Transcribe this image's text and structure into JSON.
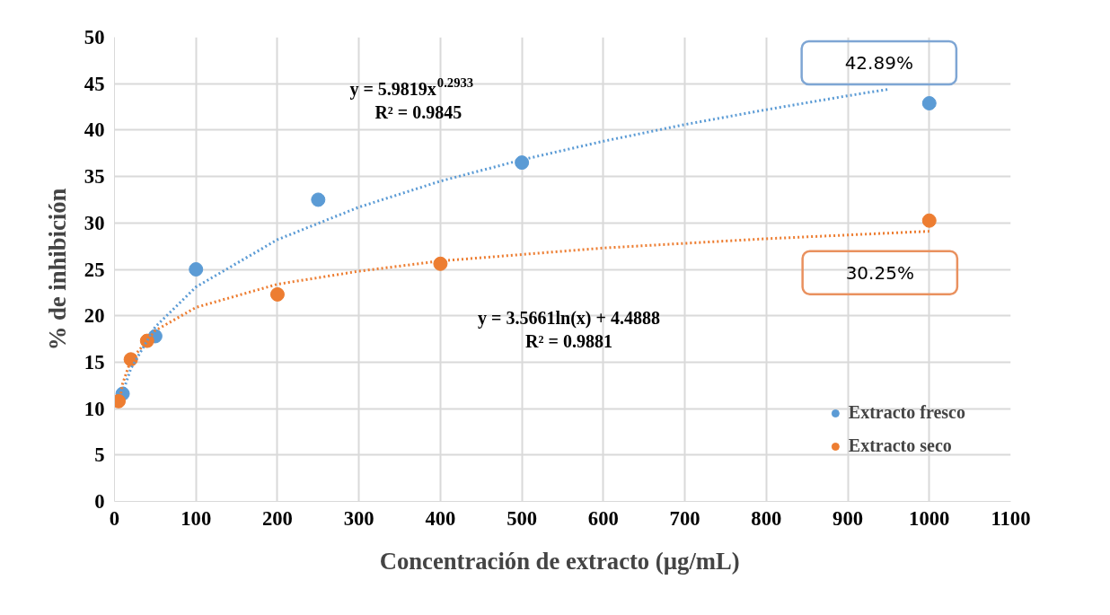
{
  "chart_data": {
    "type": "scatter",
    "xlabel": "Concentración  de extracto (µg/mL)",
    "ylabel": "% de inhibición",
    "xlim": [
      0,
      1100
    ],
    "xticks": [
      0,
      100,
      200,
      300,
      400,
      500,
      600,
      700,
      800,
      900,
      1000,
      1100
    ],
    "ylim": [
      0,
      50
    ],
    "yticks": [
      0,
      5,
      10,
      15,
      20,
      25,
      30,
      35,
      40,
      45,
      50
    ],
    "grid": true,
    "legend": "bottom right",
    "series": [
      {
        "name": "Extracto fresco",
        "marker": "circle",
        "color": "#5b9bd5",
        "x": [
          10,
          50,
          100,
          250,
          500,
          1000
        ],
        "values": [
          11.6,
          17.8,
          25.0,
          32.5,
          36.5,
          42.89
        ],
        "value_labels": [
          null,
          null,
          null,
          null,
          null,
          "42.89%"
        ]
      },
      {
        "name": "Extracto seco",
        "marker": "circle",
        "color": "#ed7d31",
        "x": [
          5,
          20,
          40,
          200,
          400,
          1000
        ],
        "values": [
          10.8,
          15.3,
          17.3,
          22.3,
          25.6,
          30.25
        ],
        "value_labels": [
          null,
          null,
          null,
          null,
          null,
          "30.25%"
        ]
      },
      {
        "type": "line",
        "line_style": "dotted",
        "color": "#5b9bd5",
        "x": [
          10,
          20,
          50,
          100,
          200,
          300,
          400,
          500,
          600,
          700,
          800,
          900,
          950
        ],
        "values": [
          11.7,
          14.3,
          18.8,
          23.1,
          28.2,
          31.7,
          34.5,
          36.8,
          38.8,
          40.6,
          42.2,
          43.7,
          44.4
        ]
      },
      {
        "type": "line",
        "line_style": "dotted",
        "color": "#ed7d31",
        "x": [
          5,
          10,
          20,
          50,
          100,
          200,
          300,
          400,
          600,
          800,
          1000
        ],
        "values": [
          10.2,
          12.7,
          15.2,
          18.4,
          20.9,
          23.4,
          24.8,
          25.9,
          27.3,
          28.3,
          29.1
        ]
      }
    ],
    "annotations": [
      "y = 5.9819x$^{0.2933}$\nR² = 0.9845",
      "y = 3.5661ln(x) + 4.4888\nR² = 0.9881"
    ]
  }
}
